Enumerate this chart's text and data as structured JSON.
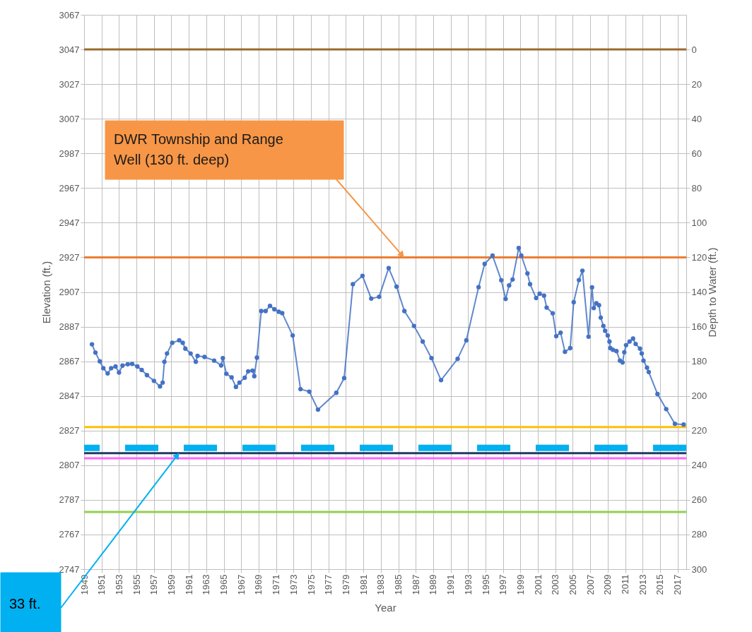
{
  "chart_data": {
    "type": "line",
    "xlabel": "Year",
    "ylabel": "Elevation (ft.)",
    "y2label": "Depth to Water (ft.)",
    "xlim": [
      1949,
      2018
    ],
    "xticks": [
      1949,
      1951,
      1953,
      1955,
      1957,
      1959,
      1961,
      1963,
      1965,
      1967,
      1969,
      1971,
      1973,
      1975,
      1977,
      1979,
      1981,
      1983,
      1985,
      1987,
      1989,
      1991,
      1993,
      1995,
      1997,
      1999,
      2001,
      2003,
      2005,
      2007,
      2009,
      2011,
      2013,
      2015,
      2017
    ],
    "ylim": [
      2747,
      3067
    ],
    "yticks": [
      2747,
      2767,
      2787,
      2807,
      2827,
      2847,
      2867,
      2887,
      2907,
      2927,
      2947,
      2967,
      2987,
      3007,
      3027,
      3047,
      3067
    ],
    "y2lim": [
      300,
      -20
    ],
    "y2ticks": [
      0,
      20,
      40,
      60,
      80,
      100,
      120,
      140,
      160,
      180,
      200,
      220,
      240,
      260,
      280,
      300
    ],
    "grid": true,
    "marker": "circle",
    "line_style": "solid",
    "series": [
      {
        "color": "#4472c4",
        "x": [
          1949.9,
          1950.3,
          1950.8,
          1951.2,
          1951.7,
          1952.1,
          1952.6,
          1953.0,
          1953.4,
          1954.0,
          1954.5,
          1955.1,
          1955.6,
          1956.2,
          1957.0,
          1957.7,
          1958.0,
          1958.2,
          1958.5,
          1959.1,
          1959.9,
          1960.3,
          1960.6,
          1961.2,
          1961.8,
          1962.0,
          1962.8,
          1963.9,
          1964.7,
          1964.9,
          1965.3,
          1965.9,
          1966.4,
          1966.8,
          1967.4,
          1967.8,
          1968.3,
          1968.5,
          1968.8,
          1969.3,
          1969.8,
          1970.3,
          1970.8,
          1971.3,
          1971.7,
          1972.9,
          1973.8,
          1974.8,
          1975.8,
          1977.9,
          1978.8,
          1979.8,
          1980.9,
          1981.9,
          1982.8,
          1983.9,
          1984.8,
          1985.7,
          1986.8,
          1987.8,
          1988.8,
          1989.9,
          1991.8,
          1992.8,
          1994.2,
          1994.9,
          1995.8,
          1996.8,
          1997.3,
          1997.7,
          1998.1,
          1998.8,
          1999.1,
          1999.8,
          2000.1,
          2000.8,
          2001.2,
          2001.7,
          2002.0,
          2002.7,
          2003.1,
          2003.6,
          2004.1,
          2004.7,
          2005.1,
          2005.7,
          2006.1,
          2006.8,
          2007.2,
          2007.4,
          2007.7,
          2008.0,
          2008.2,
          2008.5,
          2008.7,
          2009.0,
          2009.2,
          2009.3,
          2009.6,
          2010.0,
          2010.4,
          2010.7,
          2010.9,
          2011.1,
          2011.5,
          2011.9,
          2012.2,
          2012.7,
          2012.9,
          2013.1,
          2013.5,
          2013.7,
          2014.7,
          2015.7,
          2016.7,
          2017.7
        ],
        "values": [
          2876.8,
          2872,
          2867,
          2863,
          2860,
          2863,
          2864,
          2860.5,
          2864.5,
          2865.3,
          2865.5,
          2864,
          2862,
          2859,
          2855.7,
          2852.5,
          2854.7,
          2866.7,
          2871.5,
          2877.7,
          2879.1,
          2877.7,
          2874.3,
          2871.5,
          2866.7,
          2870.1,
          2869.5,
          2867.4,
          2864.6,
          2868.8,
          2859.8,
          2857.7,
          2852.2,
          2854.7,
          2857.5,
          2861.2,
          2861.6,
          2858.4,
          2869.1,
          2896,
          2896,
          2899,
          2897,
          2895.6,
          2894.8,
          2881.9,
          2850.9,
          2849.5,
          2839.1,
          2848.8,
          2857.3,
          2911.5,
          2916.3,
          2903.2,
          2904.2,
          2920.8,
          2910.1,
          2896,
          2887.4,
          2878.4,
          2868.8,
          2856.1,
          2868.4,
          2879.1,
          2909.8,
          2923.2,
          2928,
          2913.8,
          2903,
          2910.8,
          2914.2,
          2932.4,
          2928,
          2917.7,
          2911.5,
          2903.5,
          2906,
          2904.9,
          2898,
          2894.7,
          2881.5,
          2883.5,
          2872.5,
          2874.6,
          2901.1,
          2913.9,
          2919.3,
          2881.2,
          2909.7,
          2897.7,
          2900.5,
          2899.4,
          2892.2,
          2887.4,
          2884.6,
          2881.9,
          2878.4,
          2874.6,
          2873.6,
          2872.9,
          2867.4,
          2866.3,
          2872.2,
          2876.3,
          2878.4,
          2880.1,
          2877,
          2874.3,
          2871.5,
          2867.4,
          2863.3,
          2860.8,
          2848.1,
          2839.4,
          2830.9,
          2830.5
        ]
      }
    ],
    "ref_lines": [
      {
        "axis": "y",
        "value": 3047,
        "color": "#9c6a2e",
        "line_style": "solid"
      },
      {
        "axis": "y",
        "value": 2927,
        "color": "#ed7d31",
        "line_style": "solid"
      },
      {
        "axis": "y",
        "value": 2829,
        "color": "#ffc000",
        "line_style": "solid"
      },
      {
        "axis": "y",
        "value": 2817,
        "color": "#00b0f0",
        "line_style": "dashed"
      },
      {
        "axis": "y",
        "value": 2814,
        "color": "#1f3864",
        "line_style": "solid"
      },
      {
        "axis": "y",
        "value": 2811,
        "color": "#ff66ff",
        "line_style": "solid"
      },
      {
        "axis": "y",
        "value": 2780,
        "color": "#92d050",
        "line_style": "solid"
      }
    ],
    "annotations": [
      "DWR Township and Range Well (130 ft. deep)",
      "33 ft."
    ]
  }
}
